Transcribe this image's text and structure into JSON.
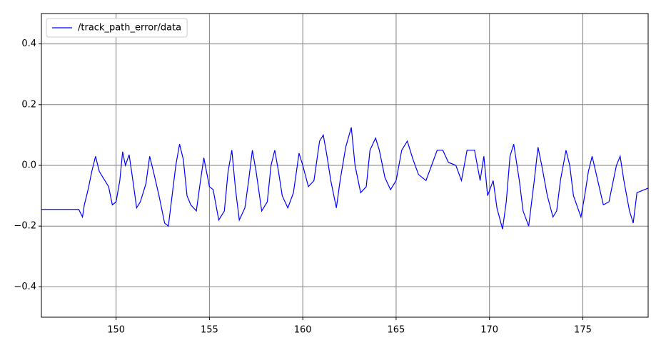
{
  "chart_data": {
    "type": "line",
    "x": [
      146,
      148,
      148.2,
      148.3,
      148.5,
      148.7,
      148.9,
      149.1,
      149.3,
      149.6,
      149.8,
      150.0,
      150.2,
      150.35,
      150.5,
      150.7,
      150.9,
      151.1,
      151.3,
      151.6,
      151.8,
      152.0,
      152.3,
      152.6,
      152.8,
      153.0,
      153.2,
      153.4,
      153.6,
      153.8,
      154.0,
      154.3,
      154.5,
      154.7,
      155.0,
      155.2,
      155.5,
      155.8,
      156.0,
      156.2,
      156.4,
      156.6,
      156.9,
      157.1,
      157.3,
      157.5,
      157.8,
      158.1,
      158.3,
      158.5,
      158.7,
      158.9,
      159.2,
      159.5,
      159.8,
      160.0,
      160.3,
      160.6,
      160.9,
      161.1,
      161.3,
      161.5,
      161.8,
      162.0,
      162.3,
      162.6,
      162.8,
      163.1,
      163.4,
      163.6,
      163.9,
      164.1,
      164.4,
      164.7,
      165.0,
      165.3,
      165.6,
      165.9,
      166.2,
      166.6,
      166.9,
      167.2,
      167.5,
      167.8,
      168.2,
      168.5,
      168.8,
      169.2,
      169.5,
      169.7,
      169.9,
      170.2,
      170.4,
      170.7,
      170.9,
      171.1,
      171.3,
      171.6,
      171.8,
      172.1,
      172.4,
      172.6,
      172.8,
      173.1,
      173.4,
      173.6,
      173.8,
      174.1,
      174.3,
      174.5,
      174.9,
      175.1,
      175.3,
      175.5,
      175.8,
      176.1,
      176.4,
      176.8,
      177.0,
      177.2,
      177.5,
      177.7,
      177.9,
      178.5
    ],
    "series": [
      {
        "name": "/track_path_error/data",
        "color": "#0000ff",
        "values": [
          -0.145,
          -0.145,
          -0.17,
          -0.13,
          -0.08,
          -0.02,
          0.03,
          -0.02,
          -0.04,
          -0.07,
          -0.13,
          -0.12,
          -0.05,
          0.045,
          0.0,
          0.035,
          -0.05,
          -0.14,
          -0.12,
          -0.06,
          0.03,
          -0.02,
          -0.1,
          -0.19,
          -0.2,
          -0.1,
          0.0,
          0.07,
          0.02,
          -0.1,
          -0.13,
          -0.15,
          -0.06,
          0.025,
          -0.07,
          -0.08,
          -0.18,
          -0.15,
          -0.02,
          0.05,
          -0.08,
          -0.18,
          -0.14,
          -0.05,
          0.05,
          -0.02,
          -0.15,
          -0.12,
          0.0,
          0.05,
          -0.02,
          -0.1,
          -0.14,
          -0.09,
          0.04,
          0.0,
          -0.07,
          -0.05,
          0.08,
          0.1,
          0.03,
          -0.05,
          -0.14,
          -0.05,
          0.06,
          0.125,
          0.0,
          -0.09,
          -0.07,
          0.05,
          0.09,
          0.05,
          -0.04,
          -0.08,
          -0.05,
          0.05,
          0.08,
          0.02,
          -0.03,
          -0.05,
          0.0,
          0.05,
          0.05,
          0.01,
          0.0,
          -0.05,
          0.05,
          0.05,
          -0.05,
          0.03,
          -0.1,
          -0.05,
          -0.14,
          -0.21,
          -0.12,
          0.03,
          0.07,
          -0.05,
          -0.15,
          -0.2,
          -0.05,
          0.06,
          0.0,
          -0.1,
          -0.17,
          -0.15,
          -0.05,
          0.05,
          0.0,
          -0.1,
          -0.17,
          -0.1,
          -0.02,
          0.03,
          -0.05,
          -0.13,
          -0.12,
          0.0,
          0.03,
          -0.05,
          -0.15,
          -0.19,
          -0.09,
          -0.075
        ]
      }
    ],
    "xlim": [
      146,
      178.5
    ],
    "ylim": [
      -0.5,
      0.5
    ],
    "xticks": [
      150,
      155,
      160,
      165,
      170,
      175
    ],
    "yticks": [
      {
        "value": -0.4,
        "label": "−0.4"
      },
      {
        "value": -0.2,
        "label": "−0.2"
      },
      {
        "value": 0,
        "label": "0.0"
      },
      0.2,
      0.4
    ],
    "grid": true,
    "legend": "upper left"
  }
}
